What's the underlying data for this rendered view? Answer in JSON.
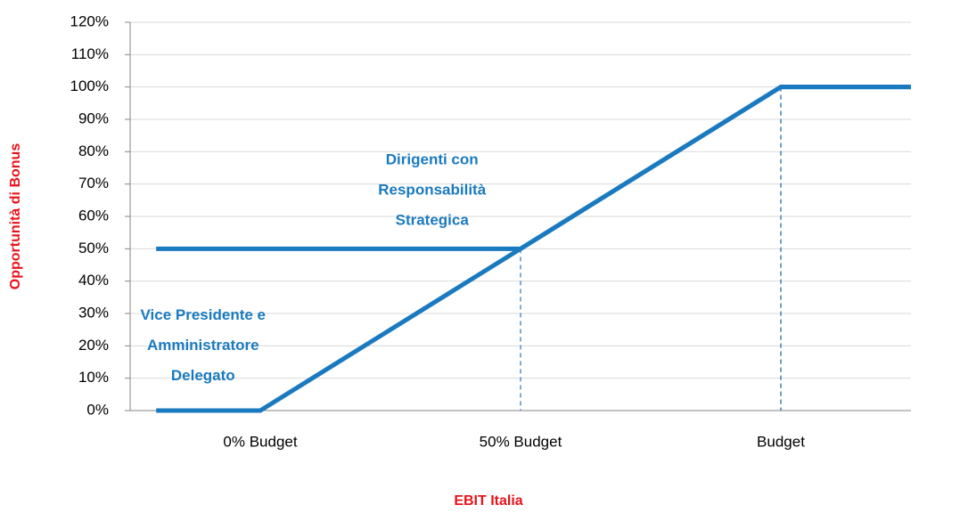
{
  "chart_data": {
    "type": "line",
    "xlabel": "EBIT Italia",
    "ylabel": "Opportunità di Bonus",
    "xlim": [
      -25,
      125
    ],
    "xticks": [
      {
        "value": 0,
        "label": "0% Budget"
      },
      {
        "value": 50,
        "label": "50% Budget"
      },
      {
        "value": 100,
        "label": "Budget"
      }
    ],
    "ylim": [
      0,
      120
    ],
    "yticks": [
      {
        "value": 0,
        "label": "0%"
      },
      {
        "value": 10,
        "label": "10%"
      },
      {
        "value": 20,
        "label": "20%"
      },
      {
        "value": 30,
        "label": "30%"
      },
      {
        "value": 40,
        "label": "40%"
      },
      {
        "value": 50,
        "label": "50%"
      },
      {
        "value": 60,
        "label": "60%"
      },
      {
        "value": 70,
        "label": "70%"
      },
      {
        "value": 80,
        "label": "80%"
      },
      {
        "value": 90,
        "label": "90%"
      },
      {
        "value": 100,
        "label": "100%"
      },
      {
        "value": 110,
        "label": "110%"
      },
      {
        "value": 120,
        "label": "120%"
      }
    ],
    "grid": true,
    "series": [
      {
        "color": "#1a7abf",
        "x": [
          -20,
          0,
          100,
          125
        ],
        "values": [
          0,
          0,
          100,
          100
        ]
      },
      {
        "color": "#1a7abf",
        "x": [
          -20,
          50,
          100,
          125
        ],
        "values": [
          50,
          50,
          100,
          100
        ]
      }
    ],
    "annotations": [
      {
        "lines": [
          "Vice Presidente e",
          "Amministratore",
          "Delegato"
        ],
        "x": -11,
        "y": 20,
        "color": "#1a7abf"
      },
      {
        "lines": [
          "Dirigenti con",
          "Responsabilità",
          "Strategica"
        ],
        "x": 33,
        "y": 68,
        "color": "#1a7abf"
      }
    ]
  }
}
